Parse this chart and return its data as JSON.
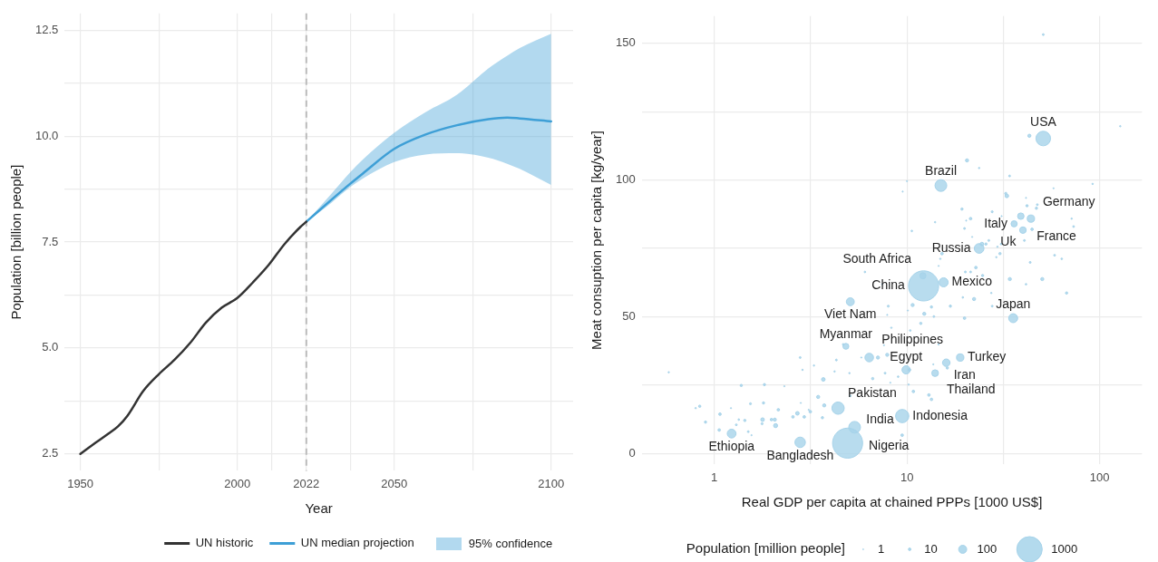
{
  "chart_data": [
    {
      "type": "line",
      "xlabel": "Year",
      "ylabel": "Population [billion people]",
      "xlim": [
        1945,
        2107
      ],
      "ylim": [
        2.1,
        12.9
      ],
      "xticks": [
        1950,
        {
          "value": 1975,
          "label": null
        },
        2000,
        {
          "value": 2011,
          "label": null
        },
        2022,
        {
          "value": 2036,
          "label": null
        },
        2050,
        {
          "value": 2075,
          "label": null
        },
        2100
      ],
      "yticks": [
        2.5,
        {
          "value": 3.75,
          "label": null
        },
        {
          "value": 5,
          "label": "5.0"
        },
        {
          "value": 6.25,
          "label": null
        },
        7.5,
        {
          "value": 8.75,
          "label": null
        },
        {
          "value": 10,
          "label": "10.0"
        },
        {
          "value": 11.25,
          "label": null
        },
        12.5
      ],
      "grid": true,
      "legend": "bottom",
      "annotations": [
        "95% confidence"
      ],
      "ref_lines": [
        {
          "axis": "x",
          "value": 2022,
          "color": "#bbbbbb",
          "line_style": "dashed"
        }
      ],
      "series": [
        {
          "name": "UN historic",
          "color": "#333333",
          "x": [
            1950,
            1955,
            1959,
            1962,
            1965,
            1970,
            1975,
            1980,
            1985,
            1990,
            1995,
            2000,
            2005,
            2010,
            2015,
            2020,
            2022
          ],
          "values": [
            2.5,
            2.77,
            2.98,
            3.15,
            3.4,
            3.98,
            4.38,
            4.72,
            5.12,
            5.6,
            5.95,
            6.18,
            6.55,
            6.96,
            7.45,
            7.85,
            7.98
          ]
        },
        {
          "name": "UN median projection",
          "color": "#3e9fd6",
          "x": [
            2022,
            2030,
            2036,
            2040,
            2050,
            2060,
            2070,
            2080,
            2086,
            2090,
            2100
          ],
          "values": [
            7.98,
            8.5,
            8.88,
            9.12,
            9.7,
            10.04,
            10.26,
            10.4,
            10.44,
            10.42,
            10.35
          ],
          "lower": [
            7.98,
            8.43,
            8.8,
            9.0,
            9.39,
            9.57,
            9.6,
            9.49,
            9.35,
            9.23,
            8.85
          ],
          "upper": [
            7.98,
            8.64,
            9.15,
            9.45,
            10.08,
            10.57,
            10.98,
            11.6,
            11.9,
            12.08,
            12.42
          ]
        }
      ]
    },
    {
      "type": "bubble",
      "xlabel": "Real GDP per capita at chained PPPs [1000 US$]",
      "ylabel": "Meat consuption per capita [kg/year]",
      "log": "x",
      "xlim": [
        0.42,
        166
      ],
      "ylim": [
        -4,
        160
      ],
      "xticks": [
        1,
        {
          "value": 3.16,
          "label": null
        },
        10,
        {
          "value": 31.6,
          "label": null
        },
        100
      ],
      "yticks": [
        0,
        {
          "value": 25,
          "label": null
        },
        50,
        {
          "value": 75,
          "label": null
        },
        100,
        {
          "value": 125,
          "label": null
        },
        150
      ],
      "grid": true,
      "legend_title": "Population [million people]",
      "size_legend": [
        1,
        10,
        100,
        1000
      ],
      "series": [
        {
          "color": "#a6d3ea",
          "x": [
            51,
            15.0,
            39,
            44,
            36,
            40,
            23.7,
            12.1,
            12.2,
            15.5,
            35.6,
            18.9,
            16.0,
            9.9,
            14.0,
            9.45,
            5.35,
            4.92,
            2.79,
            1.23,
            4.39,
            6.37,
            4.82,
            5.08,
            0.58,
            0.8,
            0.84,
            0.9,
            1.07,
            1.06,
            1.22,
            1.34,
            1.3,
            1.38,
            1.44,
            1.5,
            1.54,
            1.56,
            1.77,
            1.78,
            1.8,
            1.82,
            1.98,
            2.06,
            2.08,
            2.15,
            2.31,
            2.56,
            2.7,
            2.79,
            2.87,
            2.81,
            2.93,
            3.09,
            3.15,
            3.29,
            3.46,
            3.64,
            3.68,
            3.72,
            4.21,
            4.3,
            4.67,
            5.08,
            5.03,
            5.8,
            6.05,
            6.64,
            7.07,
            7.44,
            7.6,
            7.9,
            7.7,
            8.2,
            9.0,
            10.2,
            10.8,
            9.44,
            10.3,
            13.0,
            13.4,
            13.7,
            16.2,
            14.6,
            11.8,
            10.4,
            8.3,
            7.9,
            8.0,
            10.7,
            10.1,
            12.3,
            13.4,
            13.8,
            16.8,
            19.5,
            22.3,
            19.9,
            27.7,
            27.4,
            34.2,
            41.5,
            50.4,
            67.4,
            20.1,
            21.4,
            22.8,
            24.7,
            14.6,
            14.9,
            29.1,
            58.4,
            63.6,
            43.6,
            51,
            128,
            43.2,
            20.5,
            23.7,
            34.1,
            10.0,
            9.5,
            32.6,
            33.0,
            57.7,
            92,
            41.5,
            47.5,
            47,
            42,
            19.3,
            27.7,
            31.0,
            21.4,
            20.3,
            14.0,
            19.9,
            71.6,
            73.3,
            10.6,
            44.6,
            40.7,
            21.8,
            26.6,
            24.5,
            25.7,
            29.5,
            30.8,
            30.4,
            15.2
          ],
          "values": [
            115.2,
            98,
            86.8,
            85.9,
            84,
            81.7,
            75,
            65,
            61.3,
            62.6,
            49.5,
            35.1,
            33.2,
            30.6,
            29.4,
            13.7,
            9.6,
            3.8,
            4.1,
            7.3,
            16.6,
            35.1,
            39.2,
            55.5,
            29.7,
            16.6,
            17.3,
            11.5,
            14.4,
            8.6,
            16.6,
            12.4,
            10.5,
            24.9,
            12.1,
            8.0,
            18.2,
            6.7,
            10.9,
            12.4,
            18.5,
            25.2,
            12.4,
            12.4,
            10.2,
            16.0,
            24.6,
            13.4,
            14.7,
            35.1,
            30.6,
            18.5,
            13.4,
            16.0,
            15.3,
            32.2,
            20.7,
            13.1,
            27.1,
            17.6,
            30.0,
            34.2,
            39.9,
            21.1,
            29.4,
            35.1,
            66.4,
            27.4,
            35.1,
            61.9,
            39.6,
            36.1,
            29.4,
            25.9,
            28.1,
            25.2,
            22.7,
            6.7,
            30.6,
            21.4,
            19.8,
            32.6,
            31.3,
            39.9,
            47.6,
            45.0,
            46.0,
            50.7,
            53.9,
            54.3,
            52.3,
            51.1,
            53.6,
            50.1,
            53.9,
            57.1,
            56.5,
            49.5,
            53.9,
            58.7,
            63.8,
            61.9,
            63.8,
            58.7,
            66.4,
            66.4,
            68.0,
            65.1,
            68.6,
            71.2,
            71.8,
            72.5,
            71.2,
            69.9,
            153.2,
            119.7,
            116.2,
            107.2,
            104.4,
            101.5,
            99.6,
            95.8,
            95.1,
            94.2,
            97.0,
            98.6,
            93.5,
            91.0,
            89.7,
            90.6,
            89.4,
            88.4,
            86.8,
            85.9,
            85.2,
            84.6,
            82.3,
            85.9,
            83.0,
            81.4,
            82.0,
            77.9,
            79.2,
            77.9,
            76.6,
            76.6,
            75.6,
            76.6,
            73.1,
            73.1
          ],
          "sizes": [
            330,
            215,
            65,
            83,
            59,
            67,
            145,
            60,
            1412,
            128,
            125,
            85,
            88,
            105,
            70,
            275,
            215,
            1400,
            170,
            120,
            235,
            115,
            54,
            98,
            3,
            3,
            8,
            8,
            10,
            10,
            2,
            4,
            5,
            8,
            8,
            5,
            6,
            2,
            6,
            20,
            8,
            8,
            10,
            15,
            25,
            10,
            2,
            10,
            20,
            5,
            3,
            2,
            10,
            2,
            10,
            3,
            15,
            8,
            20,
            15,
            3,
            5,
            5,
            5,
            3,
            2,
            4,
            8,
            15,
            2,
            2,
            15,
            5,
            2,
            4,
            3,
            10,
            10,
            10,
            10,
            10,
            2,
            8,
            3,
            8,
            4,
            3,
            2,
            6,
            15,
            2,
            15,
            8,
            5,
            8,
            4,
            15,
            10,
            5,
            3,
            15,
            4,
            15,
            8,
            5,
            5,
            10,
            8,
            2,
            3,
            3,
            5,
            4,
            5,
            5,
            3,
            15,
            15,
            3,
            5,
            2,
            2,
            8,
            20,
            2,
            3,
            2,
            5,
            8,
            8,
            8,
            6,
            2,
            10,
            2,
            3,
            5,
            3,
            5,
            4,
            10,
            5,
            2,
            5,
            20,
            8,
            3,
            4,
            8,
            10
          ]
        }
      ],
      "annotations": [
        {
          "text": "USA",
          "x": 51,
          "y": 115.2
        },
        {
          "text": "Brazil",
          "x": 15.0,
          "y": 98
        },
        {
          "text": "France",
          "x": 39,
          "y": 86.8
        },
        {
          "text": "Germany",
          "x": 44,
          "y": 85.9
        },
        {
          "text": "Italy",
          "x": 36,
          "y": 84
        },
        {
          "text": "Uk",
          "x": 40,
          "y": 81.7
        },
        {
          "text": "Russia",
          "x": 23.7,
          "y": 75
        },
        {
          "text": "South Africa",
          "x": 12.1,
          "y": 65
        },
        {
          "text": "Mexico",
          "x": 15.5,
          "y": 62.6
        },
        {
          "text": "China",
          "x": 12.2,
          "y": 61.3
        },
        {
          "text": "Japan",
          "x": 35.6,
          "y": 49.5
        },
        {
          "text": "Viet Nam",
          "x": 5.08,
          "y": 55.5
        },
        {
          "text": "Turkey",
          "x": 18.9,
          "y": 35.1
        },
        {
          "text": "Myanmar",
          "x": 4.82,
          "y": 39.2
        },
        {
          "text": "Egypt",
          "x": 9.9,
          "y": 30.6
        },
        {
          "text": "Iran",
          "x": 16.0,
          "y": 33.2
        },
        {
          "text": "Philippines",
          "x": 6.37,
          "y": 35.1
        },
        {
          "text": "Thailand",
          "x": 14.0,
          "y": 29.4
        },
        {
          "text": "Pakistan",
          "x": 4.39,
          "y": 16.6
        },
        {
          "text": "Indonesia",
          "x": 9.45,
          "y": 13.7
        },
        {
          "text": "Nigeria",
          "x": 5.35,
          "y": 9.6
        },
        {
          "text": "Ethiopia",
          "x": 1.23,
          "y": 7.3
        },
        {
          "text": "Bangladesh",
          "x": 2.79,
          "y": 4.1
        },
        {
          "text": "India",
          "x": 4.92,
          "y": 3.8
        }
      ]
    }
  ]
}
